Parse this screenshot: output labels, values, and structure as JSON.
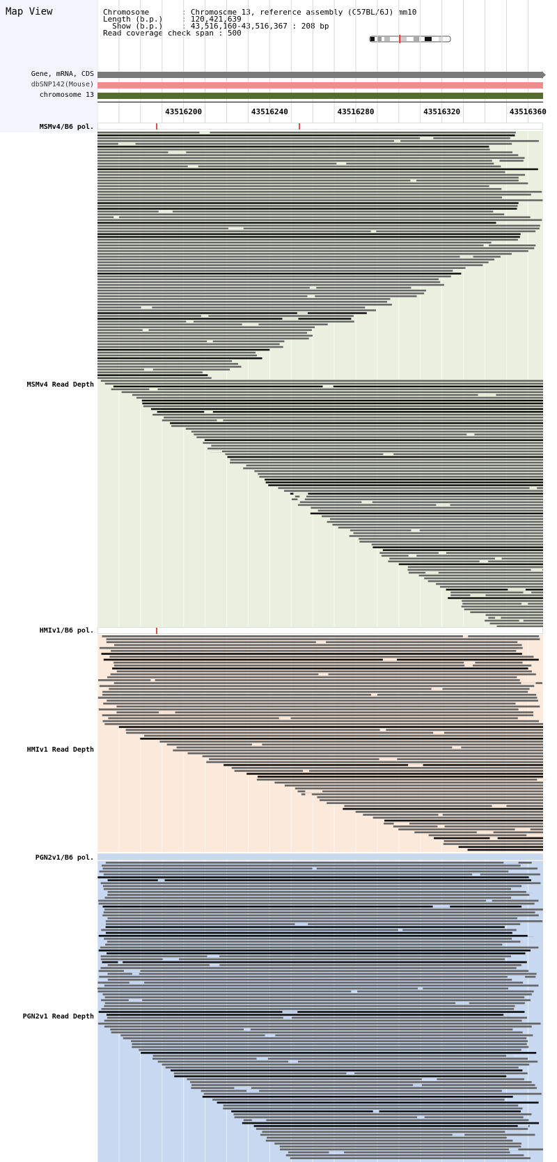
{
  "header": {
    "title": "Map View",
    "info_rows": [
      {
        "label": "Chromosome       ",
        "value": ": Chromosome 13, reference assembly (C57BL/6J) mm10"
      },
      {
        "label": "Length (b.p.)    ",
        "value": ": 120,421,639"
      },
      {
        "label": "  Show (b.p.)    ",
        "value": ": 43,516,160-43,516,367 : 208 bp"
      },
      {
        "label": "Read coverage check span",
        "value": " : 500"
      }
    ]
  },
  "tracks": [
    {
      "label": "Gene, mRNA, CDS",
      "color": "#7a7a7a"
    },
    {
      "label": "dbSNP142(Mouse)",
      "color": "#f08c8c"
    },
    {
      "label": "chromosome 13",
      "color": "#556b2f"
    }
  ],
  "axis": {
    "start": 43516160,
    "end": 43516367,
    "ticks": [
      "43516200",
      "43516240",
      "43516280",
      "43516320",
      "43516360"
    ]
  },
  "sections": [
    {
      "pol_label": "MSMv4/B6 pol.",
      "depth_label": "MSMv4 Read Depth",
      "bg": "#eaf0df",
      "snps": [
        0.13,
        0.45
      ]
    },
    {
      "pol_label": "HMIv1/B6 pol.",
      "depth_label": "HMIv1 Read Depth",
      "bg": "#fbe9dc",
      "snps": [
        0.13
      ]
    },
    {
      "pol_label": "PGN2v1/B6 pol.",
      "depth_label": "PGN2v1 Read Depth",
      "bg": "#c8d8f0",
      "snps": []
    }
  ]
}
